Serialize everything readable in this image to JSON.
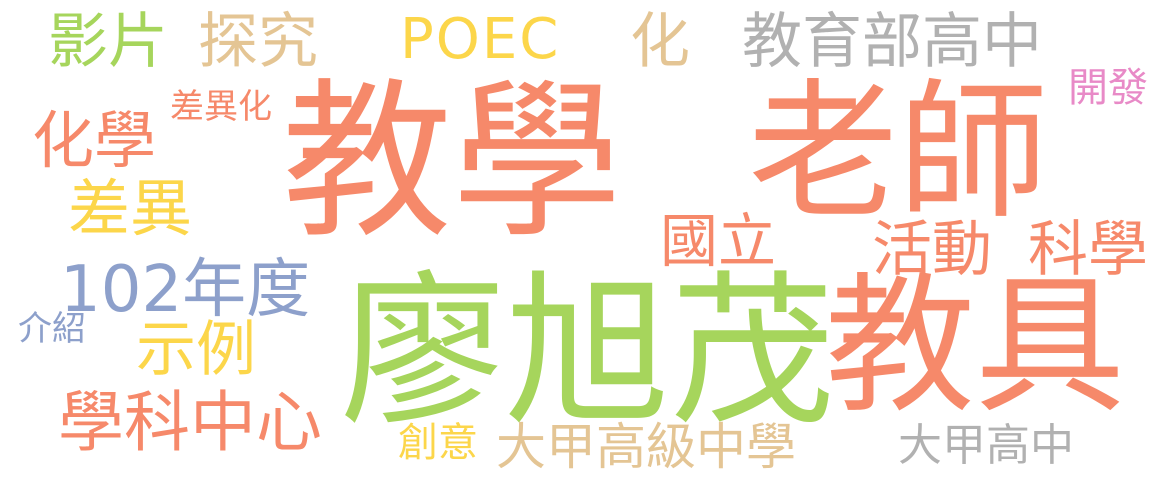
{
  "colors": {
    "background": "#ffffff",
    "orange": "#f6896a",
    "green": "#a6d55c",
    "yellow": "#fcd64a",
    "tan": "#e4c594",
    "gray": "#b1b1b1",
    "blue": "#8da0cb",
    "pink": "#e88ac7"
  },
  "words": {
    "jiaoxue": {
      "text": "教學",
      "color": "#f6896a"
    },
    "laoshi": {
      "text": "老師",
      "color": "#f6896a"
    },
    "liaoxumao": {
      "text": "廖旭茂",
      "color": "#a6d55c"
    },
    "jiaoju": {
      "text": "教具",
      "color": "#f6896a"
    },
    "yingpian": {
      "text": "影片",
      "color": "#a6d55c"
    },
    "tanjiu": {
      "text": "探究",
      "color": "#e4c594"
    },
    "poec": {
      "text": "POEC",
      "color": "#fcd64a"
    },
    "hua": {
      "text": "化",
      "color": "#e4c594"
    },
    "jybgz": {
      "text": "教育部高中",
      "color": "#b1b1b1"
    },
    "kaifa": {
      "text": "開發",
      "color": "#e88ac7"
    },
    "chayihua": {
      "text": "差異化",
      "color": "#f6896a"
    },
    "huaxue": {
      "text": "化學",
      "color": "#f6896a"
    },
    "chayi": {
      "text": "差異",
      "color": "#fcd64a"
    },
    "guoli": {
      "text": "國立",
      "color": "#f6896a"
    },
    "huodong": {
      "text": "活動",
      "color": "#f6896a"
    },
    "kexue": {
      "text": "科學",
      "color": "#f6896a"
    },
    "n102": {
      "text": "102年度",
      "color": "#8da0cb"
    },
    "jieshao": {
      "text": "介紹",
      "color": "#8da0cb"
    },
    "shili": {
      "text": "示例",
      "color": "#fcd64a"
    },
    "xkzx": {
      "text": "學科中心",
      "color": "#f6896a"
    },
    "chuangyi": {
      "text": "創意",
      "color": "#fcd64a"
    },
    "djgj": {
      "text": "大甲高級中學",
      "color": "#e4c594"
    },
    "djgz": {
      "text": "大甲高中",
      "color": "#b1b1b1"
    }
  }
}
